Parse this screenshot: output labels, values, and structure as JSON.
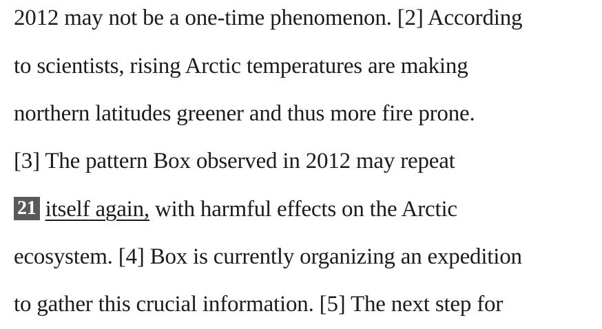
{
  "passage": {
    "line1": "2012 may not be a one-time phenomenon. [2] According",
    "line2": "to scientists, rising Arctic temperatures are making",
    "line3": "northern latitudes greener and thus more fire prone.",
    "line4": "[3] The pattern Box observed in 2012 may repeat",
    "line5_badge": "21",
    "line5_underlined": "itself again,",
    "line5_rest": " with harmful effects on the Arctic",
    "line6": "ecosystem. [4] Box is currently organizing an expedition",
    "line7": "to gather this crucial information. [5] The next step for"
  }
}
